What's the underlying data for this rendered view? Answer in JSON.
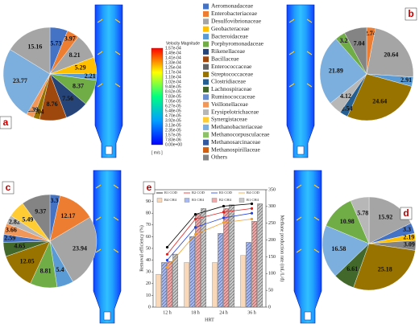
{
  "chart_data": [
    {
      "type": "pie",
      "label": "a",
      "values": [
        5.73,
        3.97,
        8.21,
        5.29,
        2.21,
        8.37,
        7.56,
        8.76,
        2.04,
        2.39,
        23.77,
        15.16
      ],
      "colors": [
        "#4472c4",
        "#ed7d31",
        "#a5a5a5",
        "#ffc000",
        "#5b9bd5",
        "#70ad47",
        "#264478",
        "#9e480e",
        "#997300",
        "#f1975a",
        "#7cafdd",
        "#a5a5a5"
      ]
    },
    {
      "type": "pie",
      "label": "b",
      "values": [
        2.74,
        20.64,
        2.91,
        24.64,
        2.54,
        4.12,
        21.89,
        3.2,
        7.04
      ],
      "colors": [
        "#ed7d31",
        "#a5a5a5",
        "#5b9bd5",
        "#997300",
        "#255e91",
        "#b7b7b7",
        "#7cafdd",
        "#70ad47",
        "#848484"
      ]
    },
    {
      "type": "pie",
      "label": "c",
      "values": [
        3.3,
        12.17,
        23.94,
        5.4,
        8.81,
        12.05,
        4.65,
        2.59,
        3.66,
        2.82,
        5.49,
        9.37
      ],
      "colors": [
        "#4472c4",
        "#ed7d31",
        "#a5a5a5",
        "#5b9bd5",
        "#70ad47",
        "#997300",
        "#43682b",
        "#4472c4",
        "#f1975a",
        "#b7b7b7",
        "#ffcd33",
        "#848484"
      ]
    },
    {
      "type": "pie",
      "label": "d",
      "values": [
        15.92,
        3.3,
        2.19,
        3.09,
        25.18,
        6.61,
        16.58,
        10.98,
        5.78
      ],
      "colors": [
        "#a5a5a5",
        "#4472c4",
        "#ffc000",
        "#848484",
        "#997300",
        "#43682b",
        "#7cafdd",
        "#70ad47",
        "#b7b7b7"
      ]
    },
    {
      "type": "bar-line",
      "label": "e",
      "categories": [
        "12 h",
        "18 h",
        "24 h",
        "36 h"
      ],
      "xlabel": "HRT",
      "ylabel": "Removal efficiency (%)",
      "y2label": "Methane production rate (mL/L/d)",
      "ylim": [
        0,
        100
      ],
      "yticks": [
        0,
        10,
        20,
        30,
        40,
        50,
        60,
        70,
        80,
        90,
        100
      ],
      "y2lim": [
        0,
        350
      ],
      "y2ticks": [
        0,
        50,
        100,
        150,
        200,
        250,
        300,
        350
      ],
      "series": [
        {
          "name": "R1 COD",
          "kind": "line",
          "color": "#000000",
          "values": [
            51,
            79,
            86,
            88
          ]
        },
        {
          "name": "R2 COD",
          "kind": "line",
          "color": "#e02020",
          "values": [
            45,
            75,
            81,
            84
          ]
        },
        {
          "name": "R3 COD",
          "kind": "line",
          "color": "#2040e0",
          "values": [
            40,
            68,
            76,
            80
          ]
        },
        {
          "name": "R4 COD",
          "kind": "line",
          "color": "#f0a030",
          "values": [
            34,
            62,
            72,
            75
          ]
        },
        {
          "name": "R4 CH4",
          "kind": "bar",
          "axis": "y2",
          "color": "#f8d8b8",
          "values": [
            98,
            133,
            133,
            154
          ]
        },
        {
          "name": "R3 CH4",
          "kind": "bar",
          "axis": "y2",
          "color": "#a8b8f0",
          "values": [
            133,
            210,
            220,
            193
          ]
        },
        {
          "name": "R2 CH4",
          "kind": "bar",
          "axis": "y2",
          "color": "#f0a8a8",
          "values": [
            136,
            277,
            294,
            256
          ]
        },
        {
          "name": "R1 CH4",
          "kind": "bar",
          "axis": "y2",
          "color": "#c8c8c8",
          "values": [
            158,
            294,
            305,
            308
          ]
        }
      ]
    }
  ],
  "legend": {
    "names": [
      "Aeromonadaceae",
      "Enterobacteriaceae",
      "Desulfovibrionaceae",
      "Geobacteraceae",
      "Bacteroidaceae",
      "Porphyromonadaceae",
      "Rikenellaceae",
      "Bacillaceae",
      "Enterococcaceae",
      "Streptococcaceae",
      "Clostridiaceae",
      "Lachnospiraceae",
      "Ruminococcaceae",
      "Veillonellaceae",
      "Erysipelotrichaceae",
      "Synergistaceae",
      "Methanobacteriaceae",
      "Methanocorpusculaceae",
      "Methanosarcinaceae",
      "Methanospirillaceae",
      "Others"
    ],
    "colors": [
      "#4472c4",
      "#ed7d31",
      "#a5a5a5",
      "#ffc000",
      "#5b9bd5",
      "#70ad47",
      "#264478",
      "#9e480e",
      "#636363",
      "#997300",
      "#255e91",
      "#43682b",
      "#698ed0",
      "#f1975a",
      "#b7b7b7",
      "#ffcd33",
      "#7cafdd",
      "#8cc168",
      "#335aa1",
      "#d26012",
      "#848484"
    ]
  },
  "colorbar": {
    "title": "Velocity Magnitude",
    "unit": "[ m/s ]",
    "labels": [
      "1.57e-04",
      "1.49e-04",
      "1.41e-04",
      "1.33e-04",
      "1.25e-04",
      "1.17e-04",
      "1.10e-04",
      "1.02e-04",
      "9.40e-05",
      "8.62e-05",
      "7.83e-05",
      "7.05e-05",
      "6.27e-05",
      "5.48e-05",
      "4.70e-05",
      "3.92e-05",
      "3.13e-05",
      "2.35e-05",
      "1.57e-05",
      "7.83e-06",
      "0.00e+00"
    ]
  }
}
